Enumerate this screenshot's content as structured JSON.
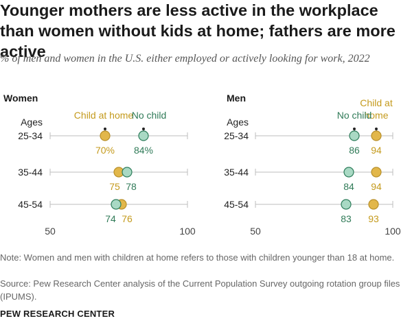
{
  "title": "Younger mothers are less active in the workplace than women without kids at home; fathers are more active",
  "subtitle": "% of men and women in the U.S. either employed or actively looking for work, 2022",
  "note": "Note: Women and men with children at home refers to those with children younger than 18 at home.",
  "source": "Source: Pew Research Center analysis of the Current Population Survey outgoing rotation group files (IPUMS).",
  "footer": "PEW RESEARCH CENTER",
  "colors": {
    "child_at_home": "#e2b74a",
    "child_at_home_text": "#c49a1c",
    "no_child": "#a9d9c4",
    "no_child_stroke": "#2e7d5b",
    "no_child_text": "#2f7a57",
    "child_stroke": "#b8902a",
    "axis": "#bdbdbd"
  },
  "chart_data": [
    {
      "type": "scatter",
      "panel": "Women",
      "row_header": "Ages",
      "categories": [
        "25-34",
        "35-44",
        "45-54"
      ],
      "series": [
        {
          "name": "Child at home",
          "values": [
            70,
            75,
            76
          ],
          "labels": [
            "70%",
            "75",
            "76"
          ]
        },
        {
          "name": "No child",
          "values": [
            84,
            78,
            74
          ],
          "labels": [
            "84%",
            "78",
            "74"
          ]
        }
      ],
      "xlim": [
        50,
        100
      ],
      "ticks": [
        "50",
        "100"
      ]
    },
    {
      "type": "scatter",
      "panel": "Men",
      "row_header": "Ages",
      "categories": [
        "25-34",
        "35-44",
        "45-54"
      ],
      "series": [
        {
          "name": "Child at home",
          "series_label_lines": [
            "Child at",
            "home"
          ],
          "values": [
            94,
            94,
            93
          ],
          "labels": [
            "94",
            "94",
            "93"
          ]
        },
        {
          "name": "No child",
          "values": [
            86,
            84,
            83
          ],
          "labels": [
            "86",
            "84",
            "83"
          ]
        }
      ],
      "xlim": [
        50,
        100
      ],
      "ticks": [
        "50",
        "100"
      ]
    }
  ]
}
